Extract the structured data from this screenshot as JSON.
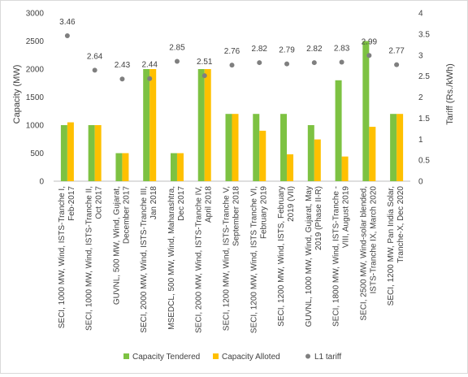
{
  "chart_data": {
    "type": "bar",
    "title": "",
    "categories": [
      "SECI, 1000 MW, Wind, ISTS-Tranche I, Feb-2017",
      "SECI, 1000 MW, Wind, ISTS-Tranche II, Oct 2017",
      "GUVNL, 500 MW, Wind, Gujarat, December 2017",
      "SECI, 2000 MW, Wind, ISTS-Tranche III, Jan 2018",
      "MSEDCL, 500 MW, Wind, Maharashtra, Dec 2017",
      "SECI, 2000 MW, Wind, ISTS-Tranche IV, April 2018",
      "SECI, 1200 MW, Wind, ISTS-Tranche V, September 2018",
      "SECI, 1200 MW, Wind, ISTS Tranche VI, February 2019",
      "SECI, 1200 MW, Wind, ISTS, February 2019 (VII)",
      "GUVNL, 1000 MW, Wind, Gujarat, May 2019 (Phase II-R)",
      "SECI, 1800 MW, Wind, ISTS-Tranche - VIII, August 2019",
      "SECI, 2500 MW, Wind-solar blended, ISTS-Tranche IX, March 2020",
      "SECI, 1200 MW, Pan India Solar, Tranche-X, Dec 2020"
    ],
    "category_lines": [
      [
        "SECI, 1000 MW, Wind, ISTS-Tranche I,",
        "Feb-2017"
      ],
      [
        "SECI, 1000 MW, Wind, ISTS-Tranche II,",
        "Oct 2017"
      ],
      [
        "GUVNL, 500 MW, Wind, Gujarat,",
        "December 2017"
      ],
      [
        "SECI, 2000 MW, Wind, ISTS-Tranche III,",
        "Jan 2018"
      ],
      [
        "MSEDCL, 500 MW, Wind, Maharashtra,",
        "Dec 2017"
      ],
      [
        "SECI, 2000 MW, Wind, ISTS-Tranche IV,",
        "April 2018"
      ],
      [
        "SECI, 1200 MW, Wind, ISTS-Tranche V,",
        "September 2018"
      ],
      [
        "SECI, 1200 MW, Wind, ISTS Tranche VI,",
        "February 2019"
      ],
      [
        "SECI, 1200 MW, Wind, ISTS, February",
        "2019 (VII)"
      ],
      [
        "GUVNL, 1000 MW, Wind, Gujarat, May",
        "2019 (Phase II-R)"
      ],
      [
        "SECI, 1800 MW, Wind, ISTS-Tranche -",
        "VIII, August 2019"
      ],
      [
        "SECI, 2500 MW, Wind-solar blended,",
        "ISTS-Tranche IX, March 2020"
      ],
      [
        "SECI, 1200 MW, Pan India Solar,",
        "Tranche-X, Dec 2020"
      ]
    ],
    "series": [
      {
        "name": "Capacity Tendered",
        "type": "bar",
        "axis": "left",
        "color": "#7dc242",
        "values": [
          1000,
          1000,
          500,
          2000,
          500,
          2000,
          1200,
          1200,
          1200,
          1000,
          1800,
          2500,
          1200
        ]
      },
      {
        "name": "Capacity Alloted",
        "type": "bar",
        "axis": "left",
        "color": "#ffc000",
        "values": [
          1050,
          1000,
          500,
          2000,
          500,
          2000,
          1200,
          900,
          480,
          745,
          440,
          970,
          1200
        ]
      },
      {
        "name": "L1 tariff",
        "type": "scatter",
        "axis": "right",
        "color": "#7f7f7f",
        "values": [
          3.46,
          2.64,
          2.43,
          2.44,
          2.85,
          2.51,
          2.76,
          2.82,
          2.79,
          2.82,
          2.83,
          2.99,
          2.77
        ],
        "labels": [
          "3.46",
          "2.64",
          "2.43",
          "2.44",
          "2.85",
          "2.51",
          "2.76",
          "2.82",
          "2.79",
          "2.82",
          "2.83",
          "2.99",
          "2.77"
        ]
      }
    ],
    "left_axis": {
      "label": "Capacity (MW)",
      "min": 0,
      "max": 3000,
      "ticks": [
        "0",
        "500",
        "1000",
        "1500",
        "2000",
        "2500",
        "3000"
      ]
    },
    "right_axis": {
      "label": "Tariff (Rs./kWh)",
      "min": 0,
      "max": 4,
      "ticks": [
        "0",
        "0.5",
        "1",
        "1.5",
        "2",
        "2.5",
        "3",
        "3.5",
        "4"
      ]
    },
    "grid": false,
    "legend_position": "bottom"
  }
}
